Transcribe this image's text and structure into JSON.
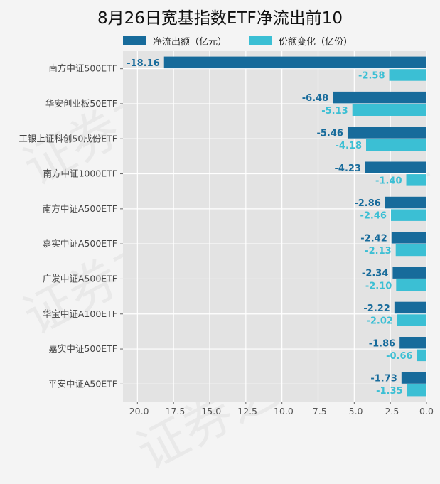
{
  "chart_data": {
    "type": "bar",
    "orientation": "horizontal",
    "title": "8月26日宽基指数ETF净流出前10",
    "categories": [
      "南方中证500ETF",
      "华安创业板50ETF",
      "工银上证科创50成份ETF",
      "南方中证1000ETF",
      "南方中证A500ETF",
      "嘉实中证A500ETF",
      "广发中证A500ETF",
      "华宝中证A100ETF",
      "嘉实中证500ETF",
      "平安中证A50ETF"
    ],
    "series": [
      {
        "name": "净流出额（亿元）",
        "color": "#176b9b",
        "values": [
          -18.16,
          -6.48,
          -5.46,
          -4.23,
          -2.86,
          -2.42,
          -2.34,
          -2.22,
          -1.86,
          -1.73
        ]
      },
      {
        "name": "份额变化（亿份）",
        "color": "#3bbfd4",
        "values": [
          -2.58,
          -5.13,
          -4.18,
          -1.4,
          -2.46,
          -2.13,
          -2.1,
          -2.02,
          -0.66,
          -1.35
        ]
      }
    ],
    "value_labels": [
      [
        "-18.16",
        "-6.48",
        "-5.46",
        "-4.23",
        "-2.86",
        "-2.42",
        "-2.34",
        "-2.22",
        "-1.86",
        "-1.73"
      ],
      [
        "-2.58",
        "-5.13",
        "-4.18",
        "-1.40",
        "-2.46",
        "-2.13",
        "-2.10",
        "-2.02",
        "-0.66",
        "-1.35"
      ]
    ],
    "xlim": [
      -21,
      0
    ],
    "xticks": [
      -20.0,
      -17.5,
      -15.0,
      -12.5,
      -10.0,
      -7.5,
      -5.0,
      -2.5,
      0.0
    ],
    "xtick_labels": [
      "-20.0",
      "-17.5",
      "-15.0",
      "-12.5",
      "-10.0",
      "-7.5",
      "-5.0",
      "-2.5",
      "0.0"
    ],
    "grid": true,
    "legend_position": "top",
    "xlabel": "",
    "ylabel": ""
  },
  "watermark_text": "证券之星"
}
